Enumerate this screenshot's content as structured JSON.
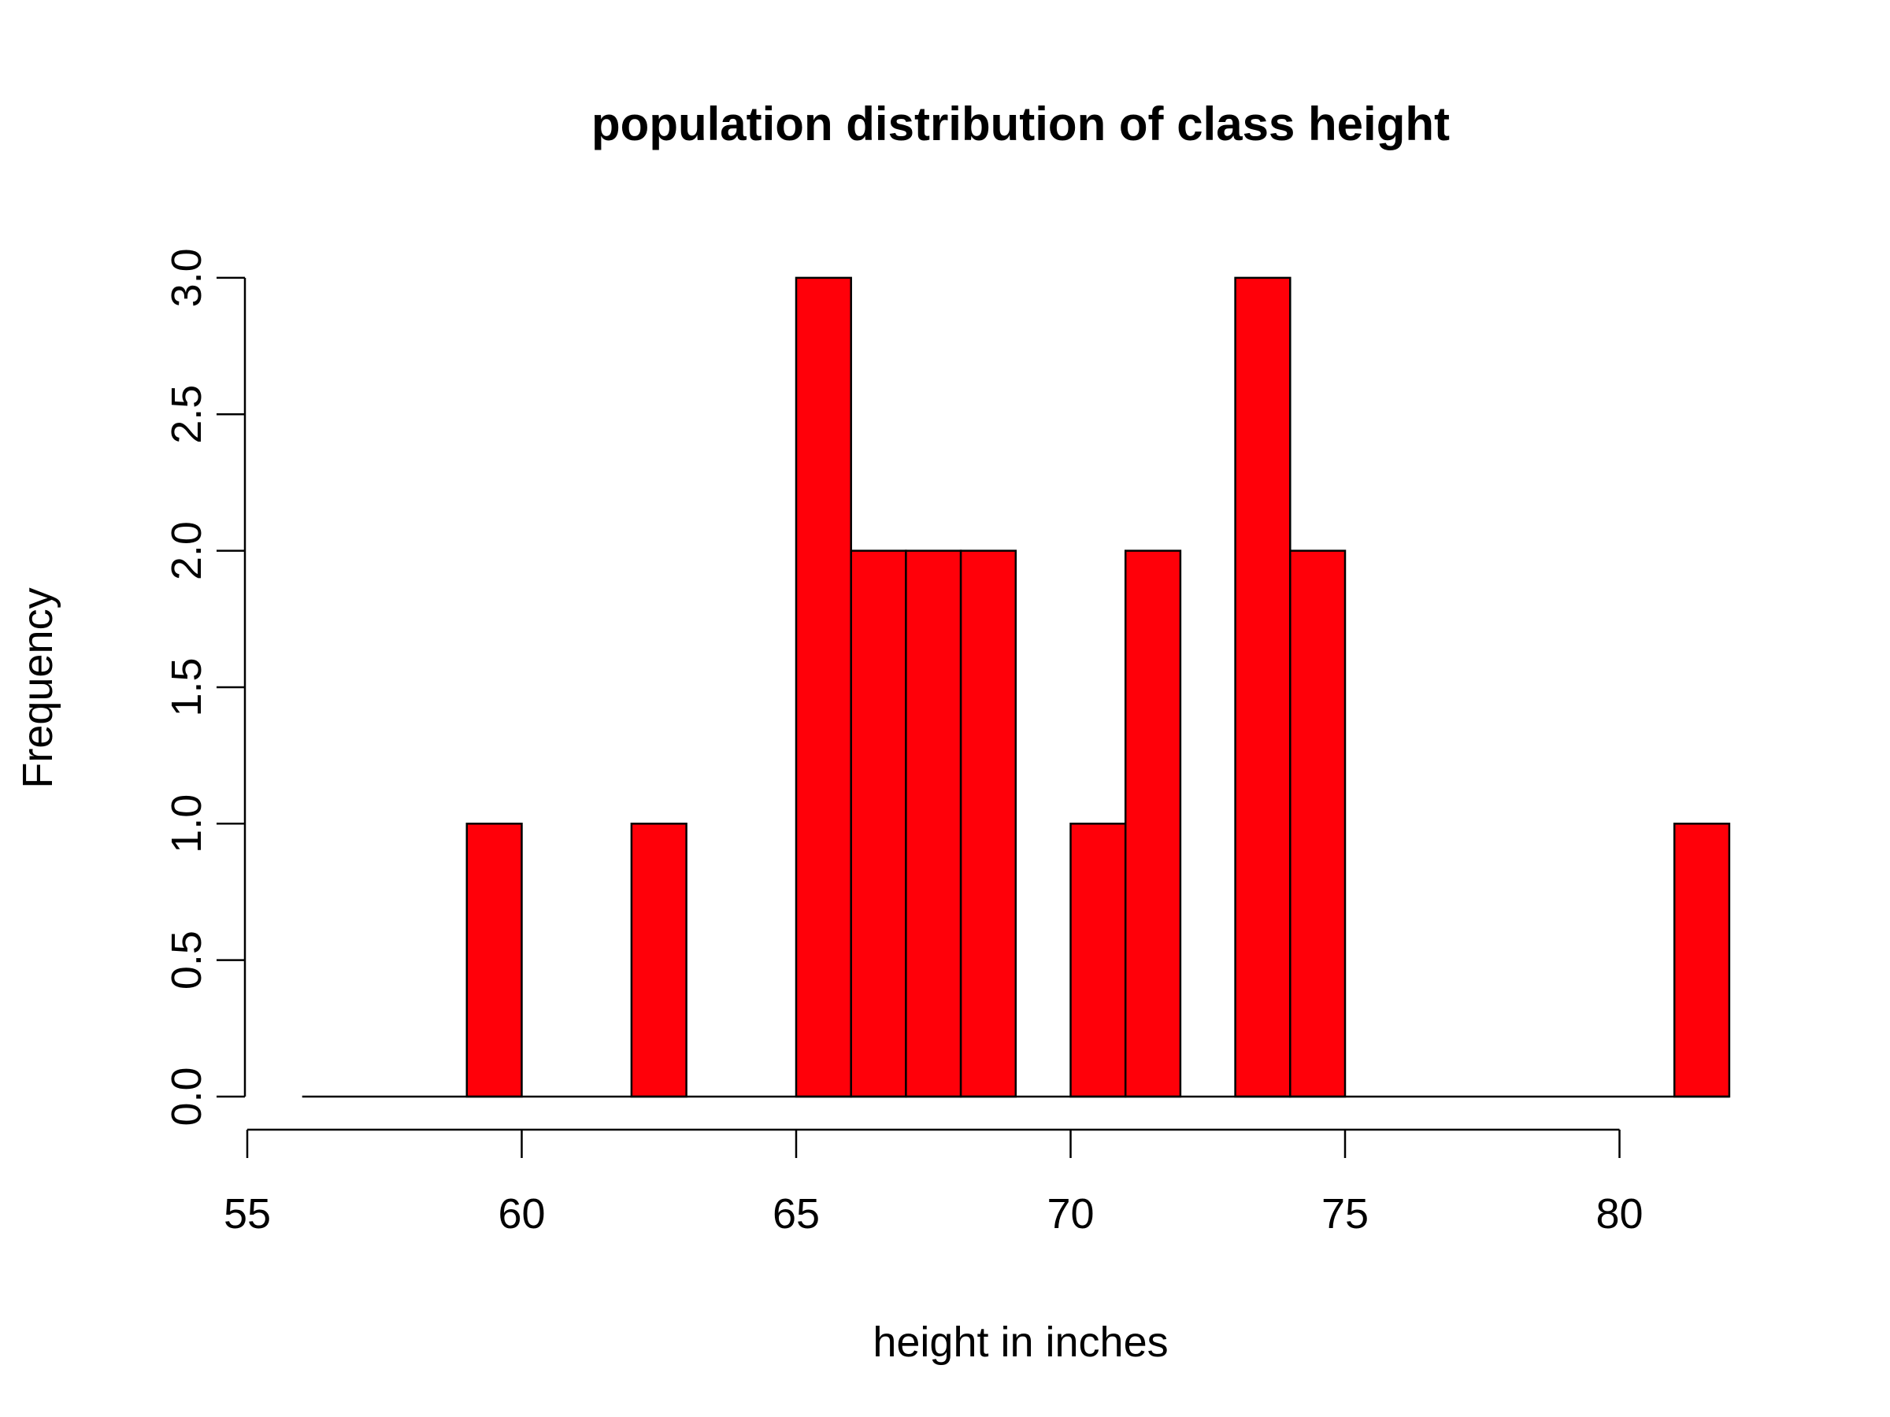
{
  "chart_data": {
    "type": "bar",
    "title": "population distribution of class height",
    "xlabel": "height in inches",
    "ylabel": "Frequency",
    "xlim": [
      55,
      82
    ],
    "ylim": [
      0,
      3
    ],
    "x_ticks": [
      55,
      60,
      65,
      70,
      75,
      80
    ],
    "y_ticks": [
      "0.0",
      "0.5",
      "1.0",
      "1.5",
      "2.0",
      "2.5",
      "3.0"
    ],
    "bins": [
      {
        "start": 56,
        "end": 57,
        "count": 0
      },
      {
        "start": 57,
        "end": 58,
        "count": 0
      },
      {
        "start": 58,
        "end": 59,
        "count": 0
      },
      {
        "start": 59,
        "end": 60,
        "count": 1
      },
      {
        "start": 60,
        "end": 61,
        "count": 0
      },
      {
        "start": 61,
        "end": 62,
        "count": 0
      },
      {
        "start": 62,
        "end": 63,
        "count": 1
      },
      {
        "start": 63,
        "end": 64,
        "count": 0
      },
      {
        "start": 64,
        "end": 65,
        "count": 0
      },
      {
        "start": 65,
        "end": 66,
        "count": 3
      },
      {
        "start": 66,
        "end": 67,
        "count": 2
      },
      {
        "start": 67,
        "end": 68,
        "count": 2
      },
      {
        "start": 68,
        "end": 69,
        "count": 2
      },
      {
        "start": 69,
        "end": 70,
        "count": 0
      },
      {
        "start": 70,
        "end": 71,
        "count": 1
      },
      {
        "start": 71,
        "end": 72,
        "count": 2
      },
      {
        "start": 72,
        "end": 73,
        "count": 0
      },
      {
        "start": 73,
        "end": 74,
        "count": 3
      },
      {
        "start": 74,
        "end": 75,
        "count": 2
      },
      {
        "start": 75,
        "end": 76,
        "count": 0
      },
      {
        "start": 76,
        "end": 77,
        "count": 0
      },
      {
        "start": 77,
        "end": 78,
        "count": 0
      },
      {
        "start": 78,
        "end": 79,
        "count": 0
      },
      {
        "start": 79,
        "end": 80,
        "count": 0
      },
      {
        "start": 80,
        "end": 81,
        "count": 0
      },
      {
        "start": 81,
        "end": 82,
        "count": 1
      }
    ],
    "bar_color": "#FF0009",
    "grid": false,
    "legend": "none"
  }
}
